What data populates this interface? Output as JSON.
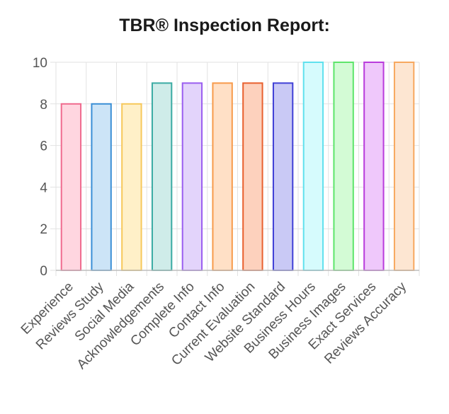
{
  "chart_data": {
    "type": "bar",
    "title": "TBR® Inspection Report:",
    "categories": [
      "Experience",
      "Reviews Study",
      "Social Media",
      "Acknowledgements",
      "Complete Info",
      "Contact Info",
      "Current Evaluation",
      "Website Standard",
      "Business Hours",
      "Business Images",
      "Exact Services",
      "Reviews Accuracy"
    ],
    "values": [
      8,
      8,
      8,
      9,
      9,
      9,
      9,
      9,
      10,
      10,
      10,
      10
    ],
    "ylim": [
      0,
      10
    ],
    "yticks": [
      0,
      2,
      4,
      6,
      8,
      10
    ],
    "grid": true,
    "legend": "none",
    "bar_colors": [
      {
        "fill": "#ffd6e0",
        "stroke": "#f06a8e"
      },
      {
        "fill": "#cce4f7",
        "stroke": "#3a8fd6"
      },
      {
        "fill": "#fff0c8",
        "stroke": "#f7c85a"
      },
      {
        "fill": "#cfece9",
        "stroke": "#3aaba3"
      },
      {
        "fill": "#e3d4fb",
        "stroke": "#9a5df0"
      },
      {
        "fill": "#ffe0c6",
        "stroke": "#f79a4a"
      },
      {
        "fill": "#fdd1bd",
        "stroke": "#e8602e"
      },
      {
        "fill": "#c9c9f5",
        "stroke": "#3f3fd6"
      },
      {
        "fill": "#d6fbfd",
        "stroke": "#5fe1ee"
      },
      {
        "fill": "#d3fbd5",
        "stroke": "#5de56a"
      },
      {
        "fill": "#efc8fb",
        "stroke": "#b93bdc"
      },
      {
        "fill": "#fde6d2",
        "stroke": "#f7a85f"
      }
    ]
  }
}
